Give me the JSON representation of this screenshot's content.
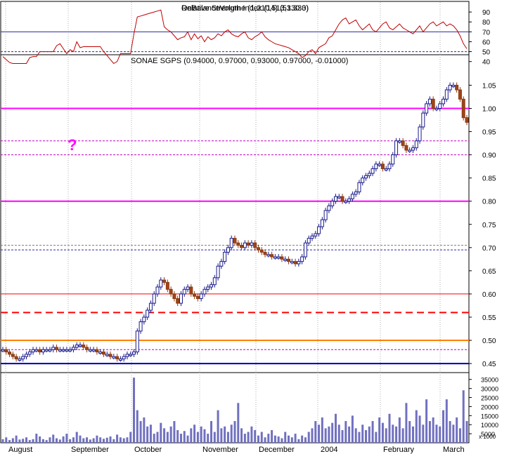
{
  "chart_data": [
    {
      "panel": "rsi",
      "type": "line",
      "title": "Relative Strength Index (14) (53.333)",
      "overlay_title": "OnBalanceVolume (1,210,513,130.0)",
      "yticks": [
        40,
        50,
        60,
        70,
        80,
        90
      ],
      "ylim": [
        32,
        100
      ],
      "reference_lines": [
        {
          "value": 70,
          "style": "solid",
          "color": "#2a2aa0"
        },
        {
          "value": 50,
          "style": "dashed",
          "color": "#2a2aa0"
        }
      ],
      "color": "#c00000",
      "values": [
        45,
        42,
        39,
        38,
        38,
        38,
        38,
        38,
        44,
        45,
        45,
        50,
        50,
        50,
        50,
        50,
        56,
        58,
        53,
        48,
        52,
        50,
        60,
        54,
        55,
        55,
        55,
        55,
        55,
        55,
        50,
        46,
        42,
        38,
        40,
        48,
        48,
        48,
        48,
        68,
        85,
        86,
        87,
        88,
        89,
        90,
        91,
        92,
        75,
        72,
        70,
        66,
        62,
        64,
        65,
        70,
        62,
        68,
        63,
        66,
        60,
        65,
        62,
        64,
        68,
        66,
        70,
        72,
        68,
        66,
        65,
        68,
        70,
        64,
        62,
        65,
        67,
        70,
        65,
        62,
        60,
        58,
        57,
        56,
        55,
        54,
        52,
        50,
        48,
        44,
        46,
        50,
        52,
        48,
        54,
        56,
        58,
        64,
        66,
        72,
        78,
        82,
        84,
        78,
        80,
        82,
        76,
        72,
        75,
        78,
        72,
        70,
        74,
        78,
        80,
        74,
        72,
        75,
        78,
        74,
        72,
        70,
        68,
        72,
        76,
        70,
        74,
        78,
        80,
        76,
        78,
        80,
        76,
        78,
        76,
        72,
        66,
        58,
        53
      ]
    },
    {
      "panel": "price",
      "type": "ohlc",
      "title": "SONAE SGPS (0.94000, 0.97000, 0.93000, 0.97000, -0.01000)",
      "yticks": [
        0.45,
        0.5,
        0.55,
        0.6,
        0.65,
        0.7,
        0.75,
        0.8,
        0.85,
        0.9,
        0.95,
        1.0,
        1.05
      ],
      "ylim": [
        0.435,
        1.09
      ],
      "annotation_text": "?",
      "close": [
        0.48,
        0.475,
        0.47,
        0.465,
        0.46,
        0.46,
        0.465,
        0.47,
        0.475,
        0.48,
        0.48,
        0.475,
        0.48,
        0.48,
        0.48,
        0.485,
        0.48,
        0.48,
        0.48,
        0.48,
        0.48,
        0.485,
        0.49,
        0.49,
        0.485,
        0.48,
        0.48,
        0.48,
        0.475,
        0.475,
        0.47,
        0.47,
        0.465,
        0.465,
        0.46,
        0.46,
        0.465,
        0.47,
        0.47,
        0.475,
        0.52,
        0.54,
        0.55,
        0.565,
        0.58,
        0.6,
        0.615,
        0.63,
        0.625,
        0.61,
        0.6,
        0.59,
        0.58,
        0.6,
        0.61,
        0.615,
        0.6,
        0.595,
        0.59,
        0.6,
        0.61,
        0.615,
        0.62,
        0.635,
        0.66,
        0.67,
        0.69,
        0.7,
        0.72,
        0.71,
        0.705,
        0.7,
        0.71,
        0.705,
        0.71,
        0.7,
        0.695,
        0.69,
        0.685,
        0.685,
        0.68,
        0.68,
        0.68,
        0.675,
        0.675,
        0.67,
        0.67,
        0.665,
        0.67,
        0.68,
        0.71,
        0.72,
        0.725,
        0.73,
        0.745,
        0.76,
        0.78,
        0.79,
        0.8,
        0.81,
        0.81,
        0.8,
        0.8,
        0.805,
        0.815,
        0.82,
        0.84,
        0.85,
        0.855,
        0.86,
        0.87,
        0.88,
        0.88,
        0.87,
        0.87,
        0.88,
        0.9,
        0.93,
        0.93,
        0.92,
        0.91,
        0.91,
        0.915,
        0.93,
        0.96,
        0.99,
        1.01,
        1.02,
        1.0,
        1.0,
        1.01,
        1.02,
        1.04,
        1.05,
        1.05,
        1.04,
        1.02,
        0.98,
        0.97
      ],
      "high_low_spread": 0.012,
      "horizontal_lines": [
        {
          "value": 1.0,
          "color": "#ff00ff",
          "style": "solid",
          "width": 2
        },
        {
          "value": 0.93,
          "color": "#c000c0",
          "style": "dashed",
          "width": 1
        },
        {
          "value": 0.9,
          "color": "#c000c0",
          "style": "dashed",
          "width": 1
        },
        {
          "value": 0.8,
          "color": "#ff00ff",
          "style": "solid",
          "width": 2
        },
        {
          "value": 0.705,
          "color": "#808080",
          "style": "dashed",
          "width": 1
        },
        {
          "value": 0.695,
          "color": "#2a2aa0",
          "style": "dashed",
          "width": 1
        },
        {
          "value": 0.6,
          "color": "#ff0000",
          "style": "solid",
          "width": 1
        },
        {
          "value": 0.56,
          "color": "#ff0000",
          "style": "dashed",
          "width": 2
        },
        {
          "value": 0.5,
          "color": "#ff8000",
          "style": "solid",
          "width": 2
        },
        {
          "value": 0.48,
          "color": "#c000c0",
          "style": "dashed",
          "width": 1
        },
        {
          "value": 0.45,
          "color": "#0000c0",
          "style": "solid",
          "width": 2
        }
      ]
    },
    {
      "panel": "volume",
      "type": "bar",
      "yticks": [
        5000,
        10000,
        15000,
        20000,
        25000,
        30000,
        35000
      ],
      "extra_tick_label": "x 1000",
      "ylim": [
        0,
        38000
      ],
      "color": "#7070c0",
      "values": [
        2000,
        3000,
        1500,
        2500,
        4000,
        1800,
        2200,
        3000,
        1500,
        2000,
        5000,
        3500,
        2000,
        1500,
        3000,
        4500,
        2500,
        1800,
        3500,
        5000,
        2000,
        3000,
        6000,
        4000,
        2500,
        3000,
        1800,
        2500,
        4000,
        3000,
        2200,
        2800,
        3500,
        2000,
        4500,
        3000,
        2500,
        3000,
        6000,
        36000,
        18000,
        12000,
        14000,
        9000,
        10000,
        5000,
        6000,
        11000,
        8000,
        6000,
        9000,
        12000,
        7000,
        5000,
        6500,
        4000,
        8000,
        10000,
        6000,
        9000,
        7500,
        5000,
        12000,
        6000,
        18000,
        8000,
        9000,
        6000,
        10000,
        12000,
        22000,
        8000,
        5000,
        6000,
        9000,
        7000,
        4000,
        6000,
        3000,
        5000,
        7000,
        4000,
        3500,
        2500,
        6000,
        4000,
        3000,
        5000,
        2000,
        4000,
        3000,
        6000,
        8000,
        12000,
        10000,
        14000,
        8000,
        9000,
        11000,
        16000,
        10000,
        7000,
        12000,
        9000,
        15000,
        8000,
        6000,
        10000,
        7000,
        9000,
        12000,
        6000,
        14000,
        11000,
        8000,
        16000,
        10000,
        9000,
        14000,
        8000,
        22000,
        12000,
        9000,
        18000,
        15000,
        10000,
        24000,
        12000,
        14000,
        10000,
        9000,
        18000,
        24000,
        12000,
        10000,
        14000,
        8000,
        29000,
        12000
      ]
    }
  ],
  "x_axis": {
    "labels": [
      "August",
      "September",
      "October",
      "November",
      "December",
      "2004",
      "February",
      "March"
    ]
  }
}
